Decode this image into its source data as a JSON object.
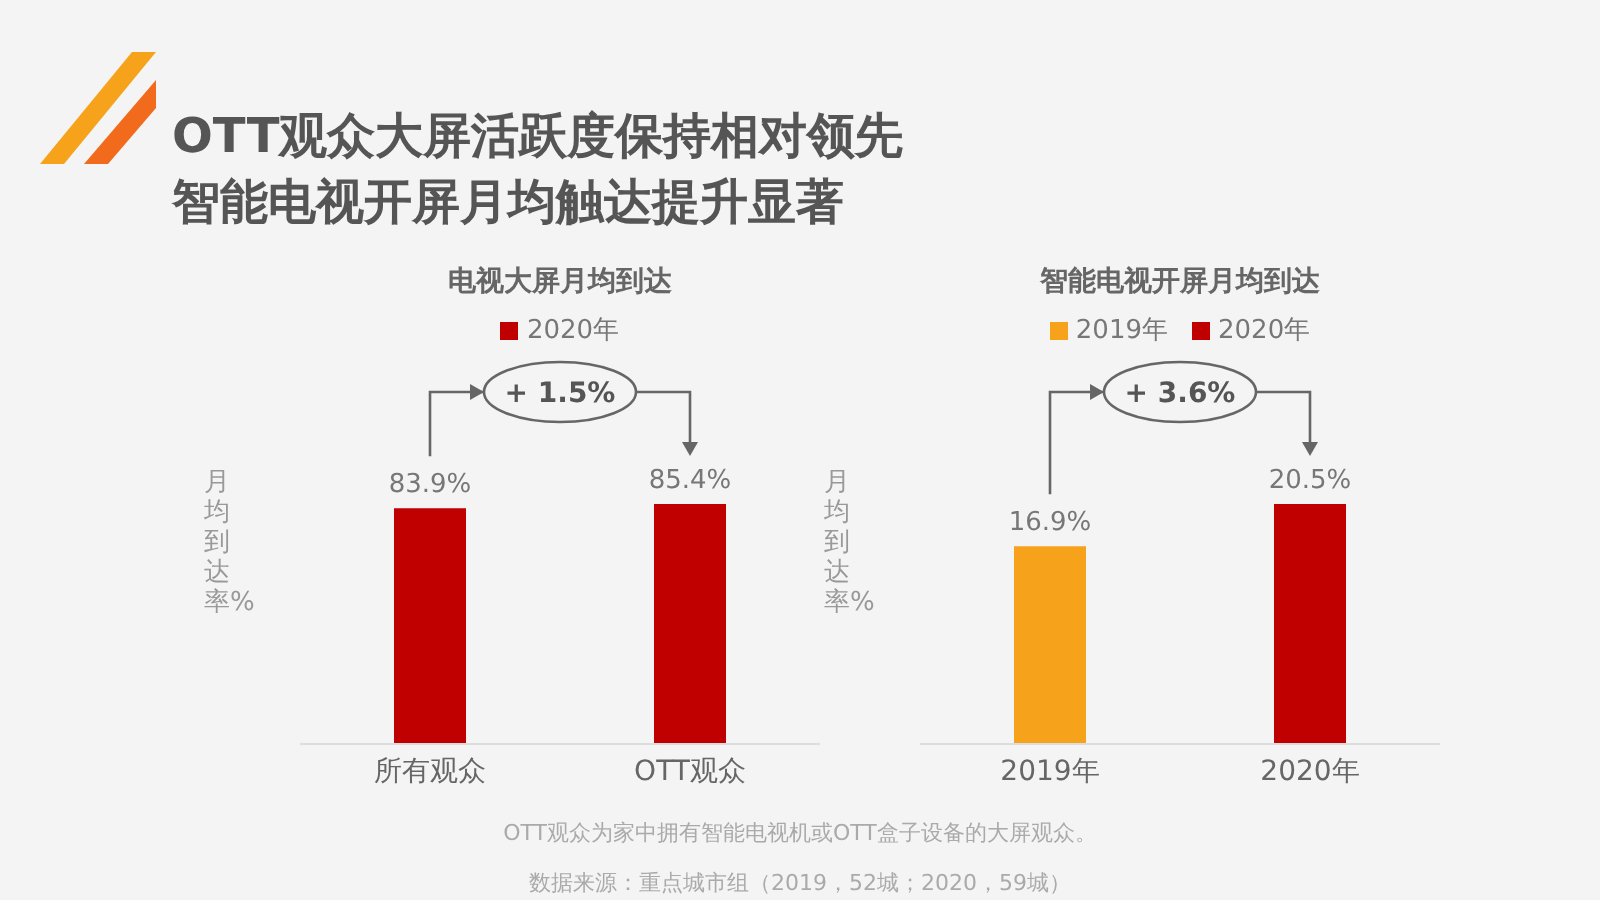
{
  "chart_data": [
    {
      "type": "bar",
      "title": "电视大屏月均到达",
      "ylabel": "月均到达率%",
      "categories": [
        "所有观众",
        "OTT观众"
      ],
      "series": [
        {
          "name": "2020年",
          "color": "#c00000",
          "values": [
            83.9,
            85.4
          ],
          "value_labels": [
            "83.9%",
            "85.4%"
          ]
        }
      ],
      "legend": "top",
      "annotations": [
        "+ 1.5%",
        "OTT观众大屏活跃度保持相对领先",
        "智能电视开屏月均触达提升显著"
      ]
    },
    {
      "type": "bar",
      "title": "智能电视开屏月均到达",
      "ylabel": "月均到达率%",
      "categories": [
        "2019年",
        "2020年"
      ],
      "stacked": true,
      "series": [
        {
          "name": "2019年",
          "color": "#f7a21b",
          "values": [
            16.9,
            null
          ],
          "value_labels": [
            "16.9%",
            null
          ]
        },
        {
          "name": "2020年",
          "color": "#c00000",
          "values": [
            null,
            20.5
          ],
          "value_labels": [
            null,
            "20.5%"
          ]
        }
      ],
      "legend": "top",
      "annotations": [
        "+ 3.6%",
        "OTT观众为家中拥有智能电视机或OTT盒子设备的大屏观众。",
        "数据来源：重点城市组（2019，52城；2020，59城）"
      ]
    }
  ]
}
